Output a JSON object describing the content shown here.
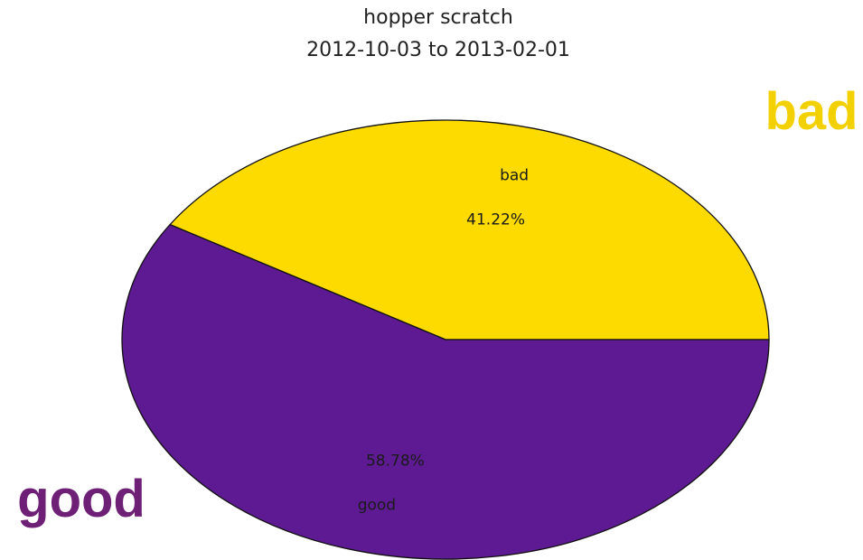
{
  "chart_data": {
    "type": "pie",
    "title": "hopper scratch",
    "subtitle": "2012-10-03 to 2013-02-01",
    "slices": [
      {
        "label": "bad",
        "value": 41.22,
        "pct_label": "41.22%",
        "color": "#FDDA00"
      },
      {
        "label": "good",
        "value": 58.78,
        "pct_label": "58.78%",
        "color": "#5E1A92"
      }
    ],
    "start_angle_deg": 0,
    "direction": "counterclockwise"
  },
  "callouts": {
    "bad": {
      "text": "bad",
      "color": "#F3D000"
    },
    "good": {
      "text": "good",
      "color": "#6E1F76"
    }
  }
}
